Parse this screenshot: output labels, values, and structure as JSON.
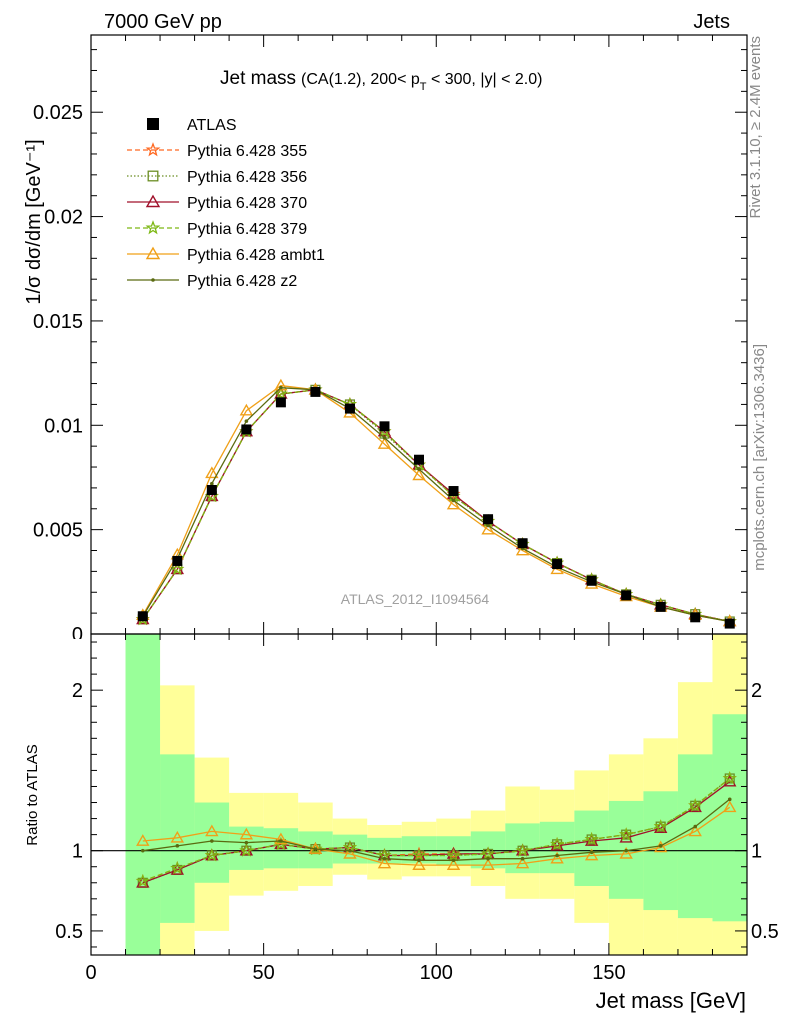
{
  "header": {
    "left": "7000 GeV pp",
    "right": "Jets"
  },
  "side_labels": {
    "rivet": "Rivet 3.1.10, ≥ 2.4M events",
    "mcplots": "mcplots.cern.ch [arXiv:1306.3436]"
  },
  "chart_data": [
    {
      "type": "line",
      "panel": "main",
      "title": "Jet mass",
      "subtitle_parts": {
        "a": "(CA(1.2), 200< p",
        "sub": "T",
        "b": " < 300, |y| < 2.0)"
      },
      "ylabel": "1/σ dσ/dm [GeV⁻¹]",
      "watermark": "ATLAS_2012_I1094564",
      "xlim": [
        0,
        190
      ],
      "ylim": [
        0,
        0.0287
      ],
      "yticks": [
        {
          "v": 0.005,
          "label": "0.005"
        },
        {
          "v": 0.01,
          "label": "0.01"
        },
        {
          "v": 0.015,
          "label": "0.015"
        },
        {
          "v": 0.02,
          "label": "0.02"
        },
        {
          "v": 0.025,
          "label": "0.025"
        }
      ],
      "x": [
        15,
        25,
        35,
        45,
        55,
        65,
        75,
        85,
        95,
        105,
        115,
        125,
        135,
        145,
        155,
        165,
        175,
        185
      ],
      "data": {
        "name": "ATLAS",
        "values": [
          0.00085,
          0.0035,
          0.0069,
          0.0098,
          0.0111,
          0.0116,
          0.0108,
          0.00995,
          0.00835,
          0.00685,
          0.0055,
          0.00435,
          0.00335,
          0.00255,
          0.00185,
          0.0013,
          0.0008,
          0.0005
        ]
      },
      "series": [
        {
          "name": "Pythia 6.428 355",
          "color": "#ff6820",
          "dash": "5,3",
          "marker": "star",
          "values": [
            0.0007,
            0.0031,
            0.0066,
            0.0097,
            0.0115,
            0.0117,
            0.011,
            0.0097,
            0.0081,
            0.0067,
            0.0054,
            0.0043,
            0.0034,
            0.0026,
            0.0019,
            0.0014,
            0.00095,
            0.0006
          ]
        },
        {
          "name": "Pythia 6.428 356",
          "color": "#6b8e23",
          "dash": "1.5,2",
          "marker": "square",
          "values": [
            0.0007,
            0.0031,
            0.0066,
            0.0097,
            0.0115,
            0.0117,
            0.011,
            0.0096,
            0.0081,
            0.0066,
            0.0054,
            0.0043,
            0.0034,
            0.0026,
            0.0019,
            0.0014,
            0.00095,
            0.0006
          ]
        },
        {
          "name": "Pythia 6.428 370",
          "color": "#a0102a",
          "dash": "",
          "marker": "triangle",
          "values": [
            0.0007,
            0.0031,
            0.0066,
            0.0097,
            0.0115,
            0.0117,
            0.011,
            0.0097,
            0.0081,
            0.0067,
            0.0054,
            0.0043,
            0.0034,
            0.0026,
            0.0019,
            0.0014,
            0.00095,
            0.0006
          ]
        },
        {
          "name": "Pythia 6.428 379",
          "color": "#7db814",
          "dash": "5,3",
          "marker": "star",
          "values": [
            0.0007,
            0.0031,
            0.0066,
            0.0097,
            0.0115,
            0.0117,
            0.011,
            0.0097,
            0.0081,
            0.0066,
            0.0054,
            0.0043,
            0.0034,
            0.0026,
            0.0019,
            0.0014,
            0.00095,
            0.0006
          ]
        },
        {
          "name": "Pythia 6.428 ambt1",
          "color": "#f0a018",
          "dash": "",
          "marker": "triangle",
          "values": [
            0.0009,
            0.0038,
            0.0077,
            0.0107,
            0.0119,
            0.0117,
            0.0106,
            0.0091,
            0.0076,
            0.0062,
            0.005,
            0.004,
            0.0031,
            0.0024,
            0.0018,
            0.0013,
            0.0009,
            0.0006
          ]
        },
        {
          "name": "Pythia 6.428 z2",
          "color": "#5a6a10",
          "dash": "",
          "marker": "dot",
          "values": [
            0.00085,
            0.0036,
            0.0072,
            0.0102,
            0.0118,
            0.0117,
            0.0108,
            0.0094,
            0.0079,
            0.0064,
            0.0052,
            0.0041,
            0.0032,
            0.0025,
            0.0019,
            0.0013,
            0.0009,
            0.0006
          ]
        }
      ]
    },
    {
      "type": "line",
      "panel": "ratio",
      "ylabel": "Ratio to ATLAS",
      "xlabel": "Jet mass [GeV]",
      "xlim": [
        0,
        190
      ],
      "ylim": [
        0.35,
        2.35
      ],
      "xticks": [
        {
          "v": 0,
          "label": "0"
        },
        {
          "v": 50,
          "label": "50"
        },
        {
          "v": 100,
          "label": "100"
        },
        {
          "v": 150,
          "label": "150"
        }
      ],
      "yticks": [
        {
          "v": 0.5,
          "label": "0.5"
        },
        {
          "v": 1,
          "label": "1"
        },
        {
          "v": 2,
          "label": "2"
        }
      ],
      "bins": [
        [
          10,
          20
        ],
        [
          20,
          30
        ],
        [
          30,
          40
        ],
        [
          40,
          50
        ],
        [
          50,
          60
        ],
        [
          60,
          70
        ],
        [
          70,
          80
        ],
        [
          80,
          90
        ],
        [
          90,
          100
        ],
        [
          100,
          110
        ],
        [
          110,
          120
        ],
        [
          120,
          130
        ],
        [
          130,
          140
        ],
        [
          140,
          150
        ],
        [
          150,
          160
        ],
        [
          160,
          170
        ],
        [
          170,
          180
        ],
        [
          180,
          190
        ]
      ],
      "band_outer": {
        "color": "#ffff99",
        "lo": [
          0.35,
          0.35,
          0.5,
          0.72,
          0.75,
          0.78,
          0.85,
          0.82,
          0.84,
          0.84,
          0.78,
          0.7,
          0.7,
          0.55,
          0.35,
          0.35,
          0.35,
          0.35
        ],
        "hi": [
          2.35,
          2.03,
          1.58,
          1.36,
          1.36,
          1.3,
          1.2,
          1.16,
          1.18,
          1.2,
          1.25,
          1.4,
          1.38,
          1.5,
          1.6,
          1.7,
          2.05,
          2.35
        ]
      },
      "band_inner": {
        "color": "#99ff99",
        "lo": [
          0.35,
          0.55,
          0.8,
          0.88,
          0.89,
          0.89,
          0.92,
          0.92,
          0.92,
          0.91,
          0.89,
          0.86,
          0.86,
          0.78,
          0.7,
          0.63,
          0.58,
          0.56
        ],
        "hi": [
          2.35,
          1.6,
          1.3,
          1.15,
          1.14,
          1.12,
          1.1,
          1.08,
          1.09,
          1.09,
          1.12,
          1.17,
          1.18,
          1.25,
          1.31,
          1.37,
          1.6,
          1.85
        ]
      },
      "reference": 1,
      "series": [
        {
          "name": "Pythia 6.428 355",
          "color": "#ff6820",
          "dash": "5,3",
          "marker": "star",
          "values": [
            0.81,
            0.89,
            0.97,
            1.0,
            1.04,
            1.01,
            1.02,
            0.97,
            0.98,
            0.98,
            0.98,
            1.0,
            1.04,
            1.07,
            1.1,
            1.15,
            1.28,
            1.45
          ]
        },
        {
          "name": "Pythia 6.428 356",
          "color": "#6b8e23",
          "dash": "1.5,2",
          "marker": "square",
          "values": [
            0.8,
            0.88,
            0.97,
            1.0,
            1.04,
            1.01,
            1.02,
            0.97,
            0.97,
            0.97,
            0.98,
            1.0,
            1.04,
            1.07,
            1.1,
            1.15,
            1.28,
            1.45
          ]
        },
        {
          "name": "Pythia 6.428 370",
          "color": "#a0102a",
          "dash": "",
          "marker": "triangle",
          "values": [
            0.8,
            0.88,
            0.97,
            1.0,
            1.04,
            1.01,
            1.02,
            0.97,
            0.97,
            0.98,
            0.98,
            1.0,
            1.03,
            1.06,
            1.08,
            1.14,
            1.27,
            1.43
          ]
        },
        {
          "name": "Pythia 6.428 379",
          "color": "#7db814",
          "dash": "5,3",
          "marker": "star",
          "values": [
            0.81,
            0.89,
            0.97,
            1.0,
            1.04,
            1.01,
            1.02,
            0.97,
            0.97,
            0.97,
            0.98,
            1.0,
            1.04,
            1.07,
            1.1,
            1.15,
            1.28,
            1.45
          ]
        },
        {
          "name": "Pythia 6.428 ambt1",
          "color": "#f0a018",
          "dash": "",
          "marker": "triangle",
          "values": [
            1.06,
            1.08,
            1.12,
            1.1,
            1.07,
            1.01,
            0.98,
            0.92,
            0.91,
            0.91,
            0.91,
            0.92,
            0.95,
            0.97,
            0.98,
            1.02,
            1.12,
            1.27
          ]
        },
        {
          "name": "Pythia 6.428 z2",
          "color": "#5a6a10",
          "dash": "",
          "marker": "dot",
          "values": [
            1.0,
            1.03,
            1.06,
            1.05,
            1.06,
            1.01,
            1.0,
            0.95,
            0.94,
            0.94,
            0.95,
            0.95,
            0.97,
            0.99,
            1.0,
            1.03,
            1.15,
            1.32
          ]
        }
      ]
    }
  ]
}
